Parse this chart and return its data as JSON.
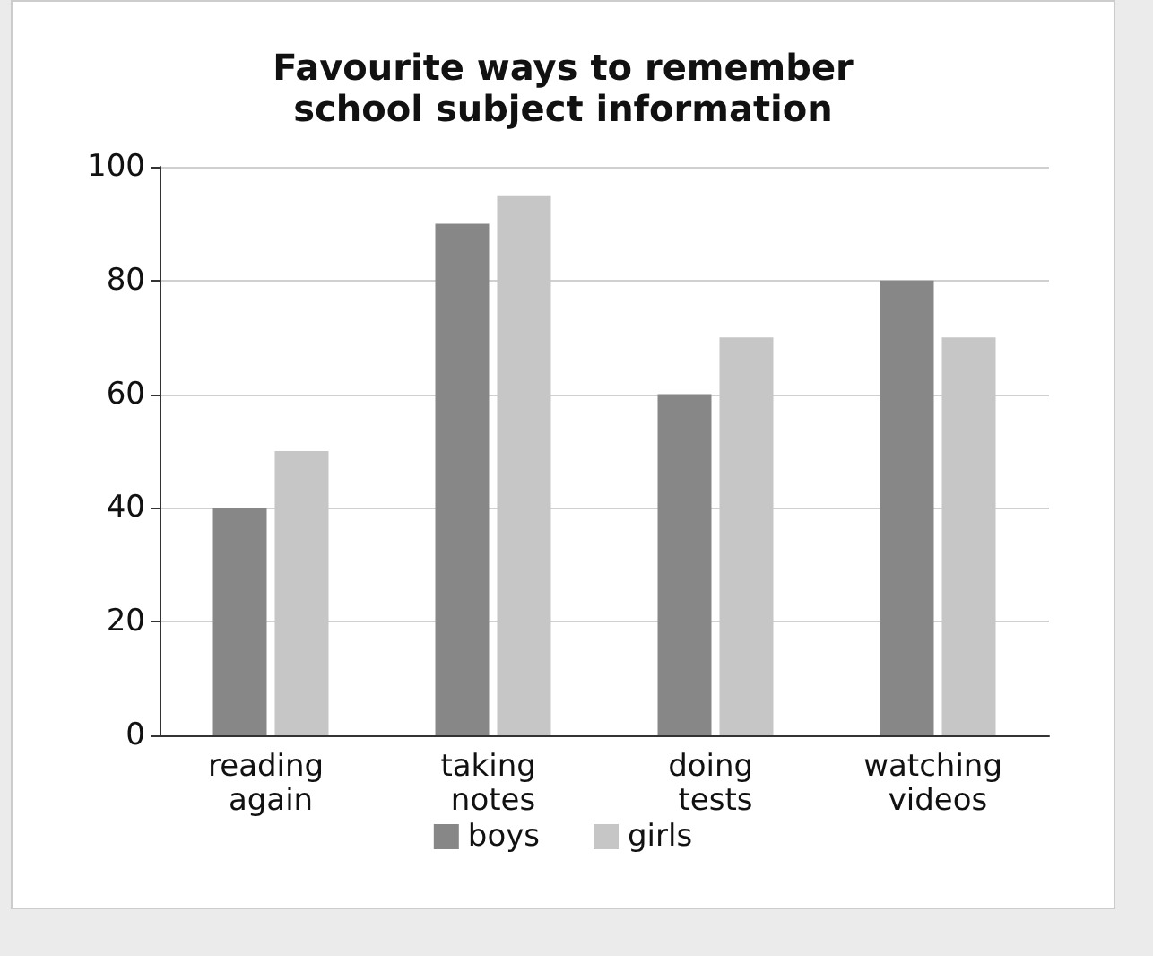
{
  "chart_data": {
    "type": "bar",
    "title": "Favourite ways to remember\nschool subject information",
    "categories": [
      "reading again",
      "taking notes",
      "doing tests",
      "watching videos"
    ],
    "series": [
      {
        "name": "boys",
        "color": "#878787",
        "values": [
          40,
          90,
          60,
          80
        ]
      },
      {
        "name": "girls",
        "color": "#c6c6c6",
        "values": [
          50,
          95,
          70,
          70
        ]
      }
    ],
    "ylim": [
      0,
      100
    ],
    "yticks": [
      0,
      20,
      40,
      60,
      80,
      100
    ],
    "grid": "y",
    "legend": "bottom"
  }
}
